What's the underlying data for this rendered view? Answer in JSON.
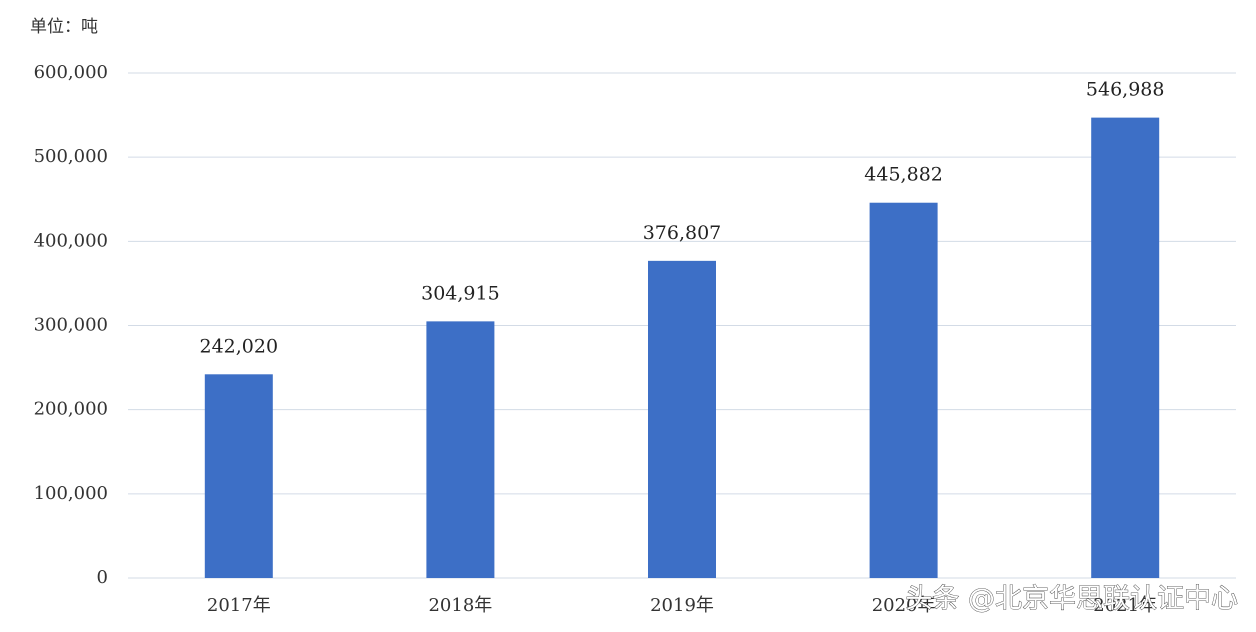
{
  "chart_data": {
    "type": "bar",
    "unit_label": "单位：吨",
    "categories": [
      "2017年",
      "2018年",
      "2019年",
      "2020年",
      "2021年"
    ],
    "values": [
      242020,
      304915,
      376807,
      445882,
      546988
    ],
    "value_labels": [
      "242,020",
      "304,915",
      "376,807",
      "445,882",
      "546,988"
    ],
    "color": "#3d6fc6",
    "ylim": [
      0,
      600000
    ],
    "yticks": [
      0,
      {
        "value": 100000,
        "label": "100,000"
      },
      {
        "value": 200000,
        "label": "200,000"
      },
      {
        "value": 300000,
        "label": "300,000"
      },
      {
        "value": 400000,
        "label": "400,000"
      },
      {
        "value": 500000,
        "label": "500,000"
      },
      {
        "value": 600000,
        "label": "600,000"
      }
    ],
    "grid": true,
    "watermark": "头条 @北京华思联认证中心"
  }
}
